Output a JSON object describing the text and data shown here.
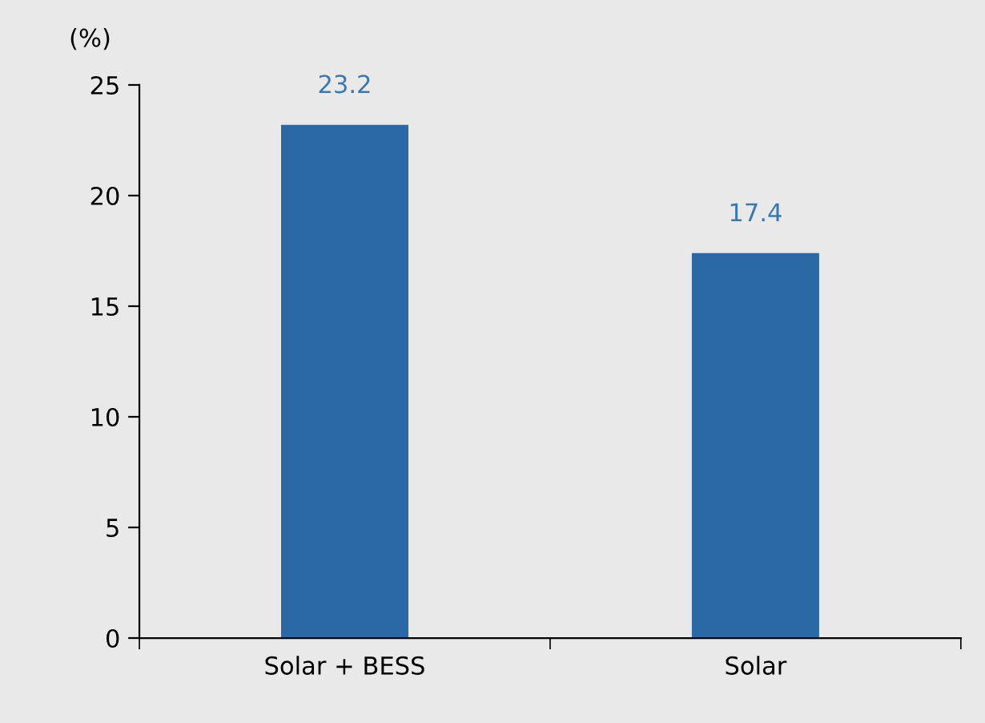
{
  "chart_data": {
    "type": "bar",
    "ylabel": "(%)",
    "categories": [
      "Solar + BESS",
      "Solar"
    ],
    "values": [
      23.2,
      17.4
    ],
    "color": "#2b69a6",
    "ylim": [
      0,
      25
    ],
    "yticks": [
      0,
      5,
      10,
      15,
      20,
      25
    ],
    "data_labels": true,
    "grid": false,
    "legend": false
  }
}
